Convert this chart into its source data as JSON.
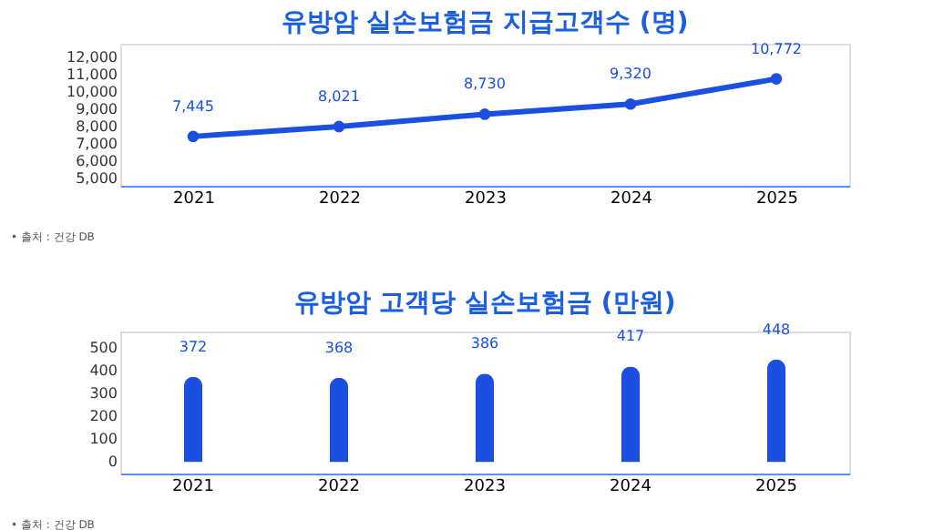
{
  "chart_data": [
    {
      "type": "line",
      "title": "유방암 실손보험금 지급고객수 (명)",
      "categories": [
        "2021",
        "2022",
        "2023",
        "2024",
        "2025"
      ],
      "series": [
        {
          "color": "#1a4fe0",
          "values": [
            7445,
            8021,
            8730,
            9320,
            10772
          ],
          "value_labels": [
            "7,445",
            "8,021",
            "8,730",
            "9,320",
            "10,772"
          ]
        }
      ],
      "ylim": [
        4600,
        12800
      ],
      "yticks": [
        {
          "value": 5000,
          "label": "5,000"
        },
        {
          "value": 6000,
          "label": "6,000"
        },
        {
          "value": 7000,
          "label": "7,000"
        },
        {
          "value": 8000,
          "label": "8,000"
        },
        {
          "value": 9000,
          "label": "9,000"
        },
        {
          "value": 10000,
          "label": "10,000"
        },
        {
          "value": 11000,
          "label": "11,000"
        },
        {
          "value": 12000,
          "label": "12,000"
        }
      ],
      "marker": "circle",
      "annotations": [
        "• 출처 : 건강 DB"
      ]
    },
    {
      "type": "bar",
      "title": "유방암 고객당 실손보험금 (만원)",
      "categories": [
        "2021",
        "2022",
        "2023",
        "2024",
        "2025"
      ],
      "series": [
        {
          "color": "#1a4fe0",
          "values": [
            372,
            368,
            386,
            417,
            448
          ]
        }
      ],
      "ylim": [
        -50,
        570
      ],
      "yticks": [
        0,
        100,
        200,
        300,
        400,
        500
      ],
      "data_labels": true,
      "annotations": [
        "• 출처 : 건강 DB"
      ]
    }
  ]
}
